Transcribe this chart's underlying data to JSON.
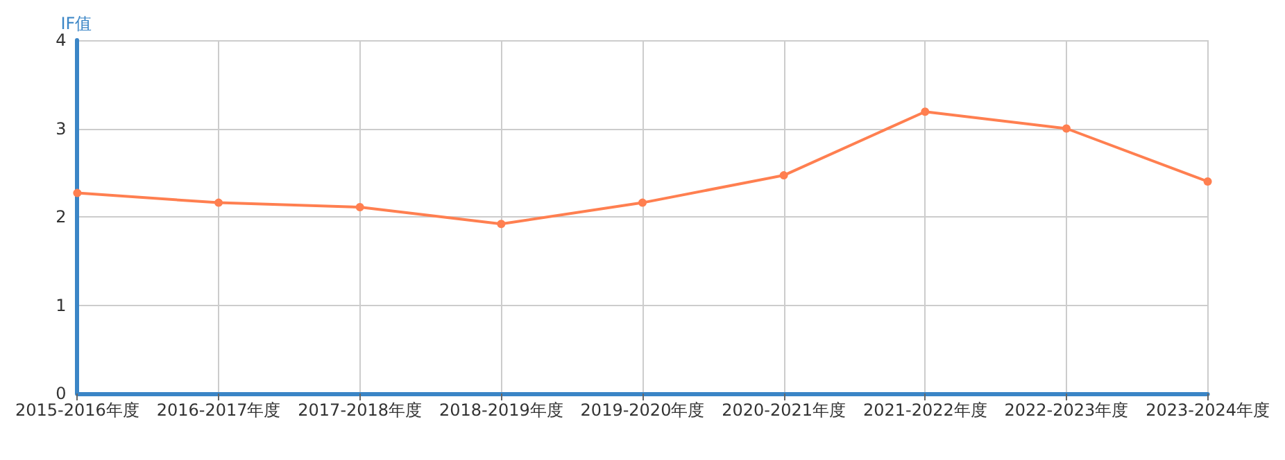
{
  "chart_data": {
    "type": "line",
    "ylabel": "IF值",
    "categories": [
      "2015-2016年度",
      "2016-2017年度",
      "2017-2018年度",
      "2018-2019年度",
      "2019-2020年度",
      "2020-2021年度",
      "2021-2022年度",
      "2022-2023年度",
      "2023-2024年度"
    ],
    "series": [
      {
        "color": "#ff7f50",
        "values": [
          2.27,
          2.16,
          2.11,
          1.92,
          2.16,
          2.47,
          3.19,
          3.0,
          2.4
        ]
      }
    ],
    "ylim": [
      0,
      4
    ],
    "yticks": [
      0,
      1,
      2,
      3,
      4
    ],
    "grid": true,
    "marker": "circle",
    "line_style": "solid"
  }
}
